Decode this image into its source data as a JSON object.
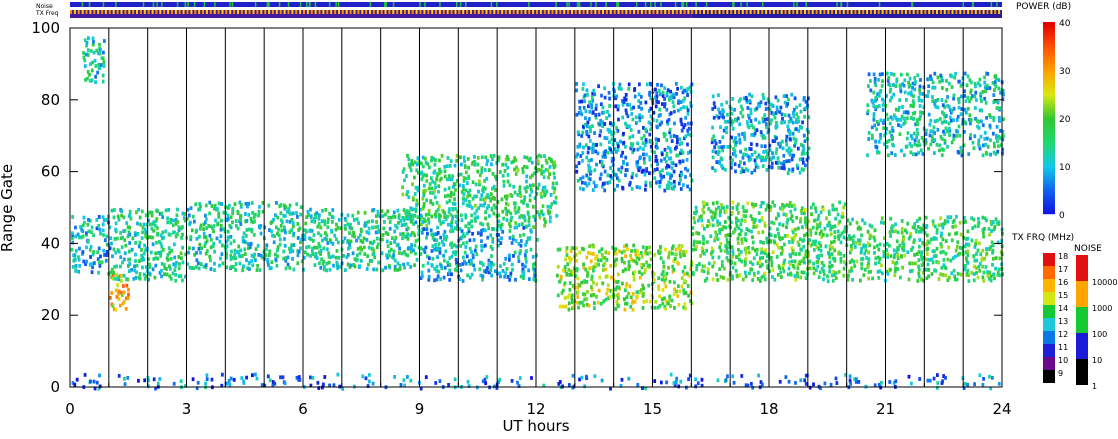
{
  "chart_data": [
    {
      "type": "heatmap",
      "title": "",
      "xlabel": "UT hours",
      "ylabel": "Range Gate",
      "xlim": [
        0,
        24
      ],
      "ylim": [
        0,
        100
      ],
      "x_ticks": [
        0,
        3,
        6,
        9,
        12,
        15,
        18,
        21,
        24
      ],
      "y_ticks": [
        0,
        20,
        40,
        60,
        80,
        100
      ],
      "scan_markers_hours": [
        1,
        2,
        3,
        4,
        5,
        6,
        7,
        8,
        9,
        10,
        11,
        12,
        13,
        14,
        15,
        16,
        17,
        18,
        19,
        20,
        21,
        22,
        23
      ],
      "grid": false,
      "echo_regions": [
        {
          "x0": 0.0,
          "x1": 1.0,
          "ylo": 32,
          "yhi": 48,
          "power": 10
        },
        {
          "x0": 0.3,
          "x1": 0.9,
          "ylo": 85,
          "yhi": 98,
          "power": 12
        },
        {
          "x0": 1.0,
          "x1": 1.5,
          "ylo": 22,
          "yhi": 32,
          "power": 28
        },
        {
          "x0": 1.0,
          "x1": 3.0,
          "ylo": 30,
          "yhi": 50,
          "power": 14
        },
        {
          "x0": 3.0,
          "x1": 6.0,
          "ylo": 33,
          "yhi": 52,
          "power": 13
        },
        {
          "x0": 6.0,
          "x1": 9.0,
          "ylo": 33,
          "yhi": 50,
          "power": 14
        },
        {
          "x0": 8.5,
          "x1": 12.5,
          "ylo": 45,
          "yhi": 65,
          "power": 16
        },
        {
          "x0": 9.0,
          "x1": 12.0,
          "ylo": 30,
          "yhi": 45,
          "power": 10
        },
        {
          "x0": 12.5,
          "x1": 16.0,
          "ylo": 22,
          "yhi": 40,
          "power": 22
        },
        {
          "x0": 13.0,
          "x1": 16.0,
          "ylo": 55,
          "yhi": 85,
          "power": 8
        },
        {
          "x0": 16.0,
          "x1": 20.0,
          "ylo": 30,
          "yhi": 52,
          "power": 18
        },
        {
          "x0": 16.5,
          "x1": 19.0,
          "ylo": 60,
          "yhi": 82,
          "power": 9
        },
        {
          "x0": 20.0,
          "x1": 24.0,
          "ylo": 30,
          "yhi": 48,
          "power": 17
        },
        {
          "x0": 20.5,
          "x1": 24.0,
          "ylo": 65,
          "yhi": 88,
          "power": 12
        },
        {
          "x0": 0.0,
          "x1": 24.0,
          "ylo": 0,
          "yhi": 4,
          "power": 6
        }
      ]
    },
    {
      "type": "heatmap",
      "name": "POWER (dB)",
      "colorbar_ticks": [
        0,
        10,
        20,
        30,
        40
      ],
      "range": [
        0,
        40
      ]
    },
    {
      "type": "heatmap",
      "name": "TX FRQ (MHz)",
      "colorbar_ticks": [
        9,
        10,
        11,
        12,
        13,
        14,
        15,
        16,
        17,
        18
      ],
      "colors": [
        "#000000",
        "#6a0a8a",
        "#1f1fd8",
        "#0a78e6",
        "#1ec8d8",
        "#16c832",
        "#d2e614",
        "#ffb400",
        "#ff6a00",
        "#e01010"
      ]
    },
    {
      "type": "heatmap",
      "name": "NOISE",
      "colorbar_ticks": [
        1,
        10,
        100,
        1000,
        10000
      ],
      "colors": [
        "#000000",
        "#1a1ad8",
        "#16c832",
        "#ffa500",
        "#e01010"
      ]
    }
  ],
  "header": {
    "noise_label": "Noise",
    "txfreq_label": "TX Freq",
    "noise_base_color": "#2020c8",
    "noise_mark_color": "#20c040",
    "txfreq_segments": [
      {
        "x0": 0,
        "x1": 16,
        "color": "#4a1a9e"
      },
      {
        "x0": 16,
        "x1": 24,
        "color": "#2a1aa0"
      }
    ],
    "txfreq_dash_colors": [
      "#ff8c00",
      "#ffd000"
    ]
  },
  "legend_titles": {
    "power": "POWER (dB)",
    "txfreq": "TX FRQ (MHz)",
    "noise": "NOISE"
  }
}
